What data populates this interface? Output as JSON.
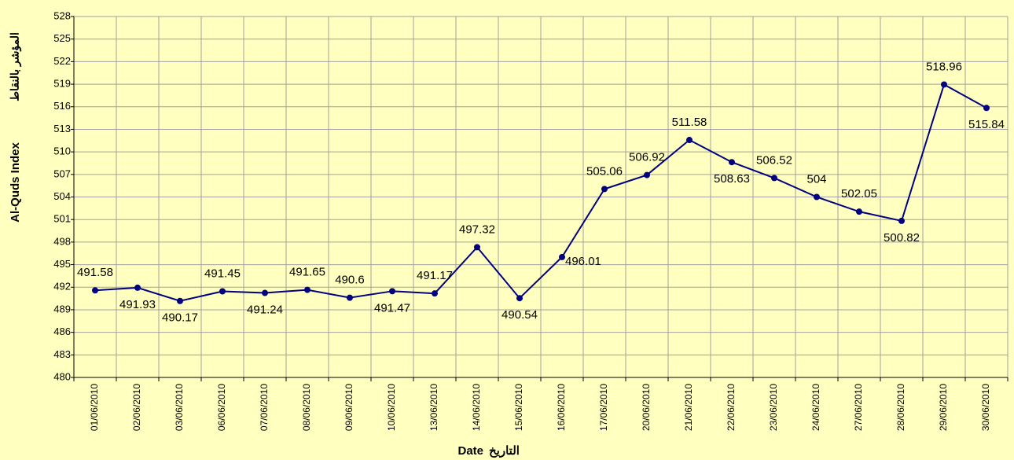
{
  "chart_data": {
    "type": "line",
    "y_label": "Al-Quds Index",
    "y_label_ar": "المؤشر بالنقاط",
    "x_label": "Date",
    "x_label_ar": "التاريخ",
    "categories": [
      "01/06/2010",
      "02/06/2010",
      "03/06/2010",
      "06/06/2010",
      "07/06/2010",
      "08/06/2010",
      "09/06/2010",
      "10/06/2010",
      "13/06/2010",
      "14/06/2010",
      "15/06/2010",
      "16/06/2010",
      "17/06/2010",
      "20/06/2010",
      "21/06/2010",
      "22/06/2010",
      "23/06/2010",
      "24/06/2010",
      "27/06/2010",
      "28/06/2010",
      "29/06/2010",
      "30/06/2010"
    ],
    "series": [
      {
        "name": "Al-Quds Index",
        "color": "#000080",
        "values": [
          491.58,
          491.93,
          490.17,
          491.45,
          491.24,
          491.65,
          490.6,
          491.47,
          491.17,
          497.32,
          490.54,
          496.01,
          505.06,
          506.92,
          511.58,
          508.63,
          506.52,
          504,
          502.05,
          500.82,
          518.96,
          515.84
        ]
      }
    ],
    "ylim": [
      480,
      528
    ],
    "yticks": [
      480,
      483,
      486,
      489,
      492,
      495,
      498,
      501,
      504,
      507,
      510,
      513,
      516,
      519,
      522,
      525,
      528
    ],
    "grid": true,
    "background": "#ffffc0"
  }
}
